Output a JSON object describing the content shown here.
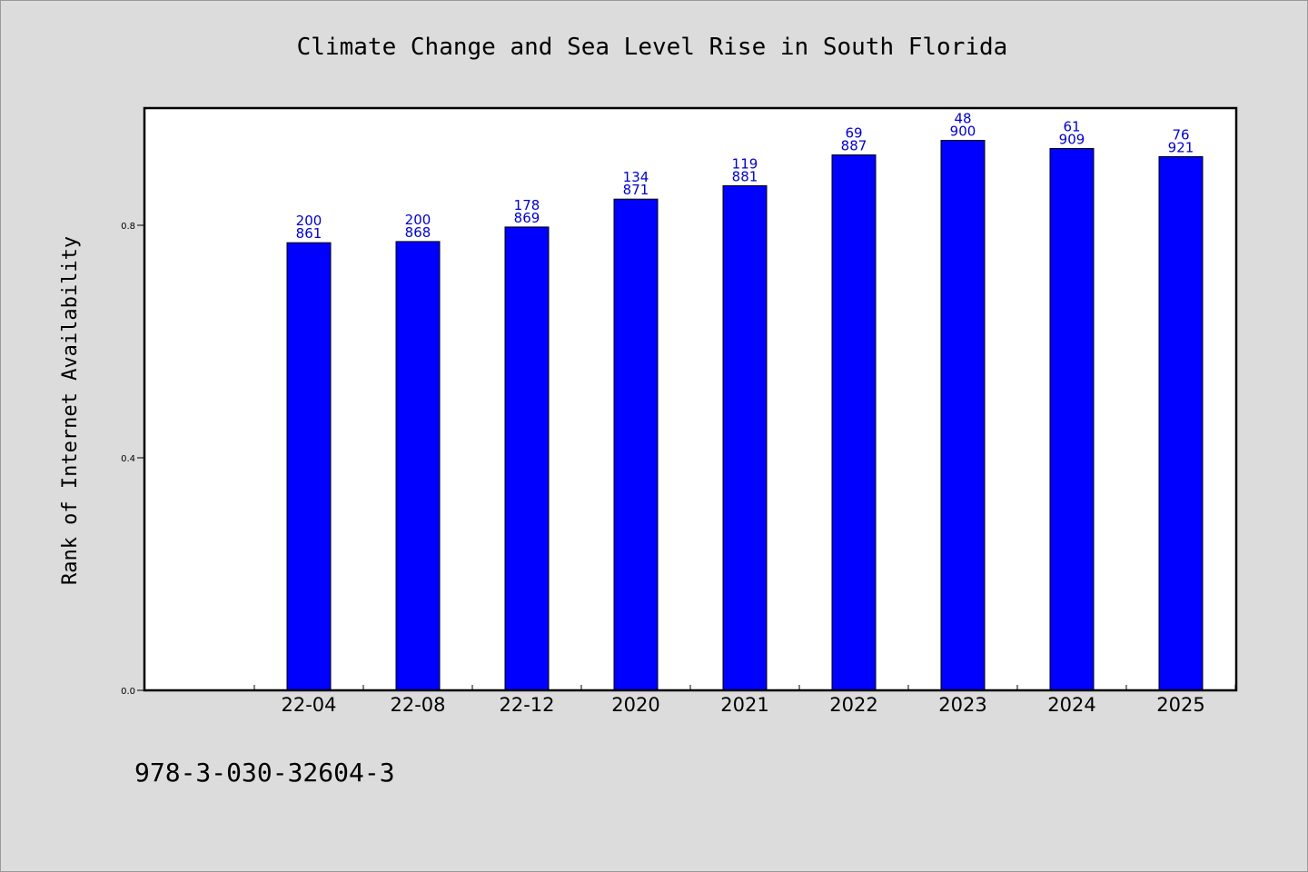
{
  "chart_data": {
    "type": "bar",
    "title": "Climate Change and Sea Level Rise in South Florida",
    "xlabel": "",
    "ylabel": "Rank of Internet Availability",
    "categories": [
      "22-04",
      "22-08",
      "22-12",
      "2020",
      "2021",
      "2022",
      "2023",
      "2024",
      "2025"
    ],
    "values": [
      0.77,
      0.772,
      0.797,
      0.845,
      0.868,
      0.921,
      0.946,
      0.932,
      0.918
    ],
    "top_labels": [
      "200",
      "200",
      "178",
      "134",
      "119",
      "69",
      "48",
      "61",
      "76"
    ],
    "bottom_labels": [
      "861",
      "868",
      "869",
      "871",
      "881",
      "887",
      "900",
      "909",
      "921"
    ],
    "ylim": [
      0.0,
      1.0
    ],
    "yticks": [
      0.0,
      0.4,
      0.8
    ],
    "ytick_labels": [
      "0.0",
      "0.4",
      "0.8"
    ],
    "grid": false,
    "bar_color": "#0000ff",
    "label_color": "#0000cc"
  },
  "footer": {
    "code": "978-3-030-32604-3"
  }
}
